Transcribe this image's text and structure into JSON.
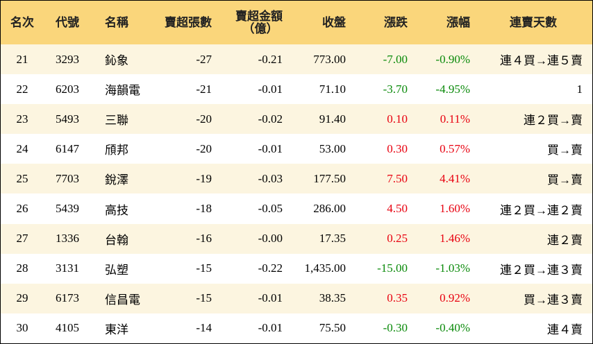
{
  "headers": {
    "rank": "名次",
    "code": "代號",
    "name": "名稱",
    "sell_lots": "賣超張數",
    "sell_amount_line1": "賣超金額",
    "sell_amount_line2": "（億）",
    "close": "收盤",
    "change": "漲跌",
    "change_pct": "漲幅",
    "streak": "連賣天數"
  },
  "colors": {
    "header_bg": "#fad67b",
    "row_alt_bg": "#fcf5e0",
    "up": "#e8000f",
    "down": "#0a8a0a"
  },
  "rows": [
    {
      "rank": "21",
      "code": "3293",
      "name": "鈊象",
      "sell_lots": "-27",
      "sell_amount": "-0.21",
      "close": "773.00",
      "change": "-7.00",
      "change_pct": "-0.90%",
      "direction": "down",
      "streak": "連４買→連５賣"
    },
    {
      "rank": "22",
      "code": "6203",
      "name": "海韻電",
      "sell_lots": "-21",
      "sell_amount": "-0.01",
      "close": "71.10",
      "change": "-3.70",
      "change_pct": "-4.95%",
      "direction": "down",
      "streak": "1"
    },
    {
      "rank": "23",
      "code": "5493",
      "name": "三聯",
      "sell_lots": "-20",
      "sell_amount": "-0.02",
      "close": "91.40",
      "change": "0.10",
      "change_pct": "0.11%",
      "direction": "up",
      "streak": "連２買→賣"
    },
    {
      "rank": "24",
      "code": "6147",
      "name": "頎邦",
      "sell_lots": "-20",
      "sell_amount": "-0.01",
      "close": "53.00",
      "change": "0.30",
      "change_pct": "0.57%",
      "direction": "up",
      "streak": "買→賣"
    },
    {
      "rank": "25",
      "code": "7703",
      "name": "銳澤",
      "sell_lots": "-19",
      "sell_amount": "-0.03",
      "close": "177.50",
      "change": "7.50",
      "change_pct": "4.41%",
      "direction": "up",
      "streak": "買→賣"
    },
    {
      "rank": "26",
      "code": "5439",
      "name": "高技",
      "sell_lots": "-18",
      "sell_amount": "-0.05",
      "close": "286.00",
      "change": "4.50",
      "change_pct": "1.60%",
      "direction": "up",
      "streak": "連２買→連２賣"
    },
    {
      "rank": "27",
      "code": "1336",
      "name": "台翰",
      "sell_lots": "-16",
      "sell_amount": "-0.00",
      "close": "17.35",
      "change": "0.25",
      "change_pct": "1.46%",
      "direction": "up",
      "streak": "連２賣"
    },
    {
      "rank": "28",
      "code": "3131",
      "name": "弘塑",
      "sell_lots": "-15",
      "sell_amount": "-0.22",
      "close": "1,435.00",
      "change": "-15.00",
      "change_pct": "-1.03%",
      "direction": "down",
      "streak": "連２買→連３賣"
    },
    {
      "rank": "29",
      "code": "6173",
      "name": "信昌電",
      "sell_lots": "-15",
      "sell_amount": "-0.01",
      "close": "38.35",
      "change": "0.35",
      "change_pct": "0.92%",
      "direction": "up",
      "streak": "買→連３賣"
    },
    {
      "rank": "30",
      "code": "4105",
      "name": "東洋",
      "sell_lots": "-14",
      "sell_amount": "-0.01",
      "close": "75.50",
      "change": "-0.30",
      "change_pct": "-0.40%",
      "direction": "down",
      "streak": "連４賣"
    }
  ]
}
